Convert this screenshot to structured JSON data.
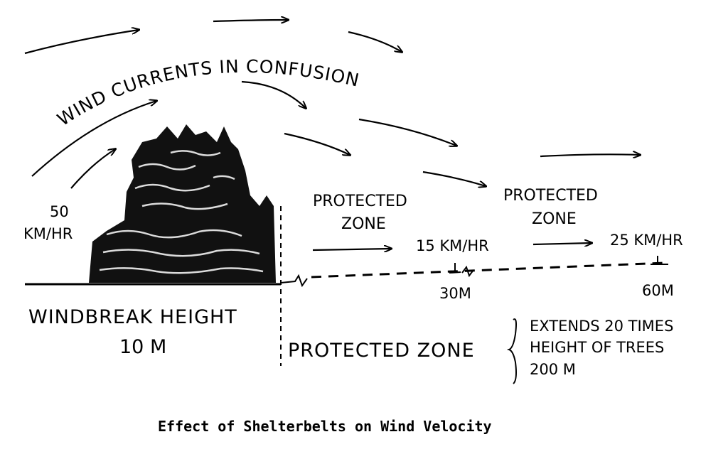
{
  "diagram": {
    "title_curved": "WIND CURRENTS IN CONFUSION",
    "incoming_speed": {
      "value": "50",
      "unit": "KM/HR"
    },
    "zone1": {
      "line1": "PROTECTED",
      "line2": "ZONE",
      "speed": "15 KM/HR",
      "distance": "30M"
    },
    "zone2": {
      "line1": "PROTECTED",
      "line2": "ZONE",
      "speed": "25 KM/HR",
      "distance": "60M"
    },
    "windbreak": {
      "label": "WINDBREAK HEIGHT",
      "height": "10 M"
    },
    "protected_zone": {
      "label": "PROTECTED ZONE",
      "note_lines": [
        "EXTENDS 20 TIMES",
        "HEIGHT OF TREES",
        "200 M"
      ]
    },
    "caption": "Effect of Shelterbelts on Wind Velocity"
  },
  "colors": {
    "ink": "#000000",
    "background": "#ffffff"
  }
}
